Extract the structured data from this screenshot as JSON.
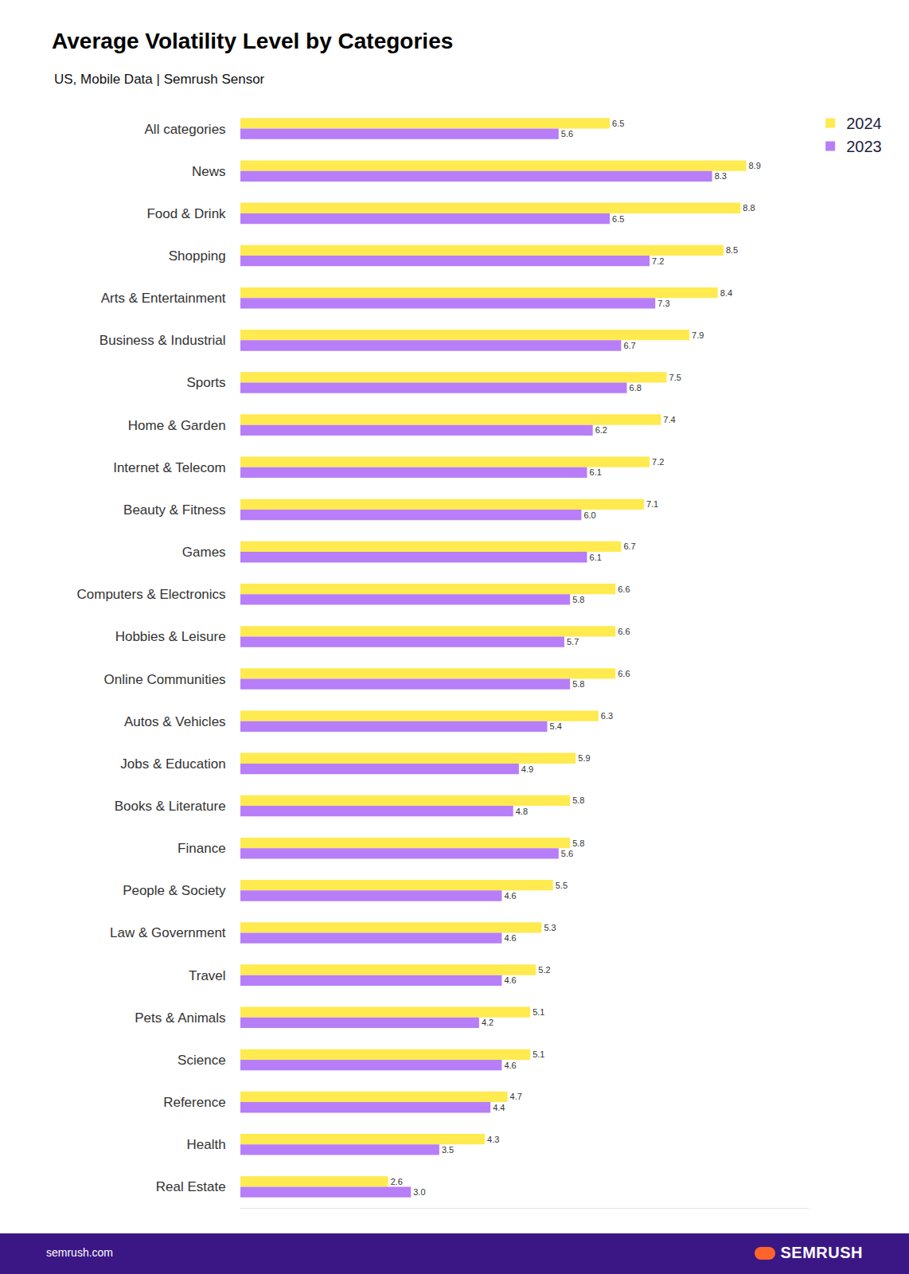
{
  "chart_data": {
    "type": "bar",
    "orientation": "horizontal",
    "title": "Average Volatility Level by Categories",
    "subtitle": "US, Mobile Data | Semrush Sensor",
    "annotations": [
      "semrush.com",
      "SEMRUSH"
    ],
    "categories": [
      "All categories",
      "News",
      "Food & Drink",
      "Shopping",
      "Arts & Entertainment",
      "Business & Industrial",
      "Sports",
      "Home & Garden",
      "Internet & Telecom",
      "Beauty & Fitness",
      "Games",
      "Computers & Electronics",
      "Hobbies & Leisure",
      "Online Communities",
      "Autos & Vehicles",
      "Jobs & Education",
      "Books & Literature",
      "Finance",
      "People & Society",
      "Law & Government",
      "Travel",
      "Pets & Animals",
      "Science",
      "Reference",
      "Health",
      "Real Estate"
    ],
    "series": [
      {
        "name": "2024",
        "color": "#ffea4f",
        "values": [
          6.5,
          8.9,
          8.8,
          8.5,
          8.4,
          7.9,
          7.5,
          7.4,
          7.2,
          7.1,
          6.7,
          6.6,
          6.6,
          6.6,
          6.3,
          5.9,
          5.8,
          5.8,
          5.5,
          5.3,
          5.2,
          5.1,
          5.1,
          4.7,
          4.3,
          2.6
        ],
        "value_labels": [
          "6.5",
          "8.9",
          "8.8",
          "8.5",
          "8.4",
          "7.9",
          "7.5",
          "7.4",
          "7.2",
          "7.1",
          "6.7",
          "6.6",
          "6.6",
          "6.6",
          "6.3",
          "5.9",
          "5.8",
          "5.8",
          "5.5",
          "5.3",
          "5.2",
          "5.1",
          "5.1",
          "4.7",
          "4.3",
          "2.6"
        ]
      },
      {
        "name": "2023",
        "color": "#b77ef8",
        "values": [
          5.6,
          8.3,
          6.5,
          7.2,
          7.3,
          6.7,
          6.8,
          6.2,
          6.1,
          6.0,
          6.1,
          5.8,
          5.7,
          5.8,
          5.4,
          4.9,
          4.8,
          5.6,
          4.6,
          4.6,
          4.6,
          4.2,
          4.6,
          4.4,
          3.5,
          3.0
        ],
        "value_labels": [
          "5.6",
          "8.3",
          "6.5",
          "7.2",
          "7.3",
          "6.7",
          "6.8",
          "6.2",
          "6.1",
          "6.0",
          "6.1",
          "5.8",
          "5.7",
          "5.8",
          "5.4",
          "4.9",
          "4.8",
          "5.6",
          "4.6",
          "4.6",
          "4.6",
          "4.2",
          "4.6",
          "4.4",
          "3.5",
          "3.0"
        ]
      }
    ],
    "xlim": [
      0,
      10
    ],
    "xticks": [],
    "grid": false,
    "legend": "top right",
    "data_labels": true,
    "tick_labels": "y"
  }
}
